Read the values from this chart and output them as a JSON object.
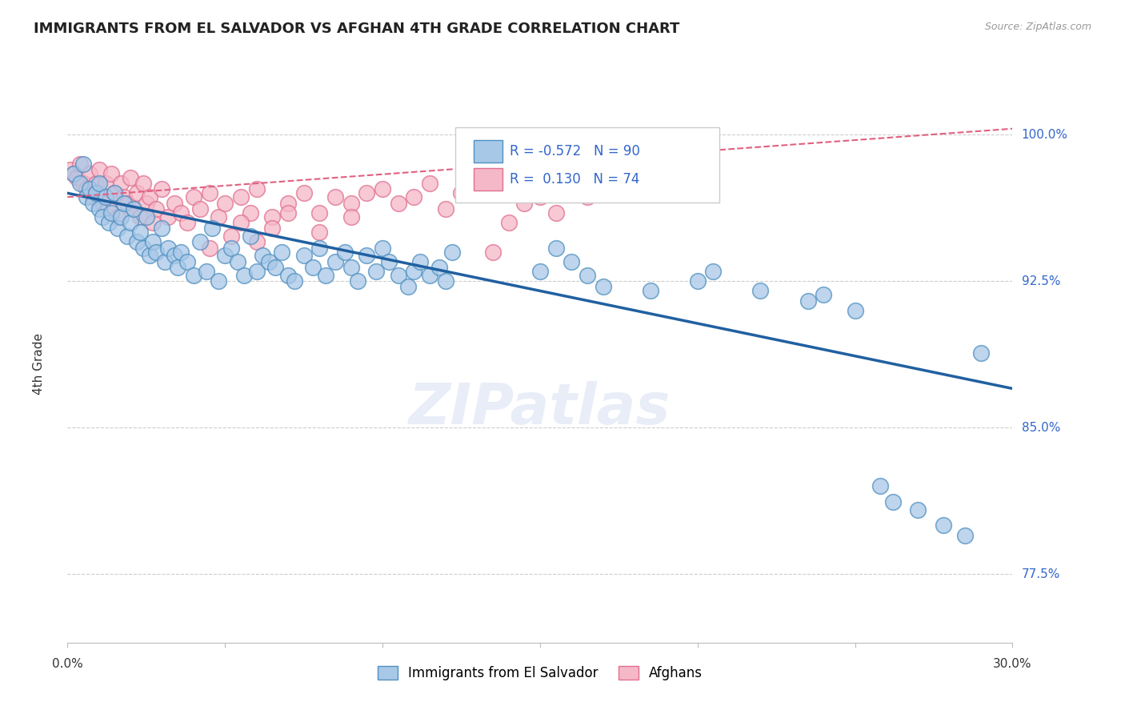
{
  "title": "IMMIGRANTS FROM EL SALVADOR VS AFGHAN 4TH GRADE CORRELATION CHART",
  "source": "Source: ZipAtlas.com",
  "ylabel": "4th Grade",
  "yaxis_labels": [
    "77.5%",
    "85.0%",
    "92.5%",
    "100.0%"
  ],
  "yaxis_values": [
    0.775,
    0.85,
    0.925,
    1.0
  ],
  "xlim": [
    0.0,
    0.3
  ],
  "ylim": [
    0.74,
    1.025
  ],
  "legend_blue_R": "-0.572",
  "legend_blue_N": "90",
  "legend_pink_R": "0.130",
  "legend_pink_N": "74",
  "blue_color": "#a8c8e8",
  "blue_edge_color": "#5090c0",
  "pink_color": "#f5b8c8",
  "pink_edge_color": "#e07090",
  "blue_line_color": "#2060a0",
  "pink_line_color": "#e06080",
  "watermark": "ZIPatlas",
  "blue_scatter_x": [
    0.002,
    0.004,
    0.005,
    0.006,
    0.007,
    0.008,
    0.009,
    0.01,
    0.01,
    0.011,
    0.012,
    0.013,
    0.014,
    0.015,
    0.016,
    0.017,
    0.018,
    0.019,
    0.02,
    0.021,
    0.022,
    0.023,
    0.024,
    0.025,
    0.026,
    0.027,
    0.028,
    0.03,
    0.031,
    0.032,
    0.034,
    0.035,
    0.036,
    0.038,
    0.04,
    0.042,
    0.044,
    0.046,
    0.048,
    0.05,
    0.052,
    0.054,
    0.056,
    0.058,
    0.06,
    0.062,
    0.064,
    0.066,
    0.068,
    0.07,
    0.072,
    0.075,
    0.078,
    0.08,
    0.082,
    0.085,
    0.088,
    0.09,
    0.092,
    0.095,
    0.098,
    0.1,
    0.102,
    0.105,
    0.108,
    0.11,
    0.112,
    0.115,
    0.118,
    0.12,
    0.122,
    0.14,
    0.15,
    0.155,
    0.16,
    0.165,
    0.17,
    0.185,
    0.2,
    0.205,
    0.22,
    0.235,
    0.24,
    0.25,
    0.258,
    0.262,
    0.27,
    0.278,
    0.285,
    0.29
  ],
  "blue_scatter_y": [
    0.98,
    0.975,
    0.985,
    0.968,
    0.972,
    0.965,
    0.97,
    0.962,
    0.975,
    0.958,
    0.968,
    0.955,
    0.96,
    0.97,
    0.952,
    0.958,
    0.965,
    0.948,
    0.955,
    0.962,
    0.945,
    0.95,
    0.942,
    0.958,
    0.938,
    0.945,
    0.94,
    0.952,
    0.935,
    0.942,
    0.938,
    0.932,
    0.94,
    0.935,
    0.928,
    0.945,
    0.93,
    0.952,
    0.925,
    0.938,
    0.942,
    0.935,
    0.928,
    0.948,
    0.93,
    0.938,
    0.935,
    0.932,
    0.94,
    0.928,
    0.925,
    0.938,
    0.932,
    0.942,
    0.928,
    0.935,
    0.94,
    0.932,
    0.925,
    0.938,
    0.93,
    0.942,
    0.935,
    0.928,
    0.922,
    0.93,
    0.935,
    0.928,
    0.932,
    0.925,
    0.94,
    0.975,
    0.93,
    0.942,
    0.935,
    0.928,
    0.922,
    0.92,
    0.925,
    0.93,
    0.92,
    0.915,
    0.918,
    0.91,
    0.82,
    0.812,
    0.808,
    0.8,
    0.795,
    0.888
  ],
  "pink_scatter_x": [
    0.001,
    0.002,
    0.003,
    0.004,
    0.005,
    0.006,
    0.007,
    0.008,
    0.009,
    0.01,
    0.01,
    0.011,
    0.012,
    0.013,
    0.014,
    0.015,
    0.016,
    0.017,
    0.018,
    0.019,
    0.02,
    0.021,
    0.022,
    0.023,
    0.024,
    0.025,
    0.026,
    0.027,
    0.028,
    0.03,
    0.032,
    0.034,
    0.036,
    0.038,
    0.04,
    0.042,
    0.045,
    0.048,
    0.05,
    0.055,
    0.058,
    0.06,
    0.065,
    0.07,
    0.075,
    0.08,
    0.085,
    0.09,
    0.095,
    0.1,
    0.105,
    0.11,
    0.115,
    0.12,
    0.125,
    0.13,
    0.135,
    0.14,
    0.145,
    0.15,
    0.155,
    0.16,
    0.165,
    0.17,
    0.175,
    0.18,
    0.06,
    0.065,
    0.07,
    0.045,
    0.052,
    0.055,
    0.08,
    0.09
  ],
  "pink_scatter_y": [
    0.982,
    0.98,
    0.978,
    0.985,
    0.975,
    0.972,
    0.98,
    0.968,
    0.975,
    0.97,
    0.982,
    0.965,
    0.975,
    0.962,
    0.98,
    0.97,
    0.958,
    0.975,
    0.968,
    0.965,
    0.978,
    0.962,
    0.97,
    0.958,
    0.975,
    0.965,
    0.968,
    0.955,
    0.962,
    0.972,
    0.958,
    0.965,
    0.96,
    0.955,
    0.968,
    0.962,
    0.97,
    0.958,
    0.965,
    0.968,
    0.96,
    0.972,
    0.958,
    0.965,
    0.97,
    0.96,
    0.968,
    0.965,
    0.97,
    0.972,
    0.965,
    0.968,
    0.975,
    0.962,
    0.97,
    0.972,
    0.94,
    0.955,
    0.965,
    0.968,
    0.96,
    0.972,
    0.968,
    0.975,
    0.978,
    0.98,
    0.945,
    0.952,
    0.96,
    0.942,
    0.948,
    0.955,
    0.95,
    0.958
  ]
}
